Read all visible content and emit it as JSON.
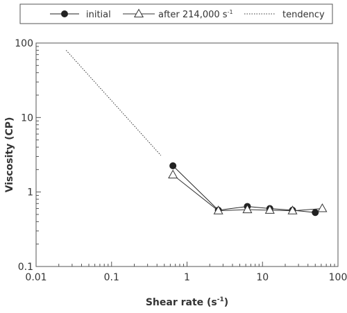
{
  "chart_data": {
    "type": "line",
    "title": "",
    "xlabel": "Shear rate (s",
    "xlabel_sup": "-1",
    "xlabel_close": ")",
    "ylabel": "Viscosity (CP)",
    "xscale": "log",
    "yscale": "log",
    "xlim": [
      0.01,
      100
    ],
    "ylim": [
      0.1,
      100
    ],
    "x_ticks": [
      {
        "value": 0.01,
        "label": "0.01"
      },
      {
        "value": 0.1,
        "label": "0.1"
      },
      {
        "value": 1,
        "label": "1"
      },
      {
        "value": 10,
        "label": "10"
      },
      {
        "value": 100,
        "label": "100"
      }
    ],
    "y_ticks": [
      {
        "value": 0.1,
        "label": "0.1"
      },
      {
        "value": 1,
        "label": "1"
      },
      {
        "value": 10,
        "label": "10"
      },
      {
        "value": 100,
        "label": "100"
      }
    ],
    "grid": false,
    "legend_position": "top",
    "series": [
      {
        "name": "initial",
        "marker": "filled-circle",
        "color": "#222222",
        "x": [
          0.65,
          2.6,
          6.3,
          12.5,
          25,
          50
        ],
        "y": [
          2.25,
          0.57,
          0.64,
          0.6,
          0.57,
          0.53
        ]
      },
      {
        "name": "after 214,000 s",
        "name_sup": "-1",
        "marker": "open-triangle",
        "color": "#333333",
        "x": [
          0.65,
          2.6,
          6.3,
          12.5,
          25,
          62
        ],
        "y": [
          1.7,
          0.56,
          0.58,
          0.57,
          0.56,
          0.6
        ]
      },
      {
        "name": "tendency",
        "marker": "none",
        "linestyle": "dotted",
        "color": "#333333",
        "x": [
          0.025,
          0.45
        ],
        "y": [
          80,
          3.1
        ]
      }
    ]
  }
}
